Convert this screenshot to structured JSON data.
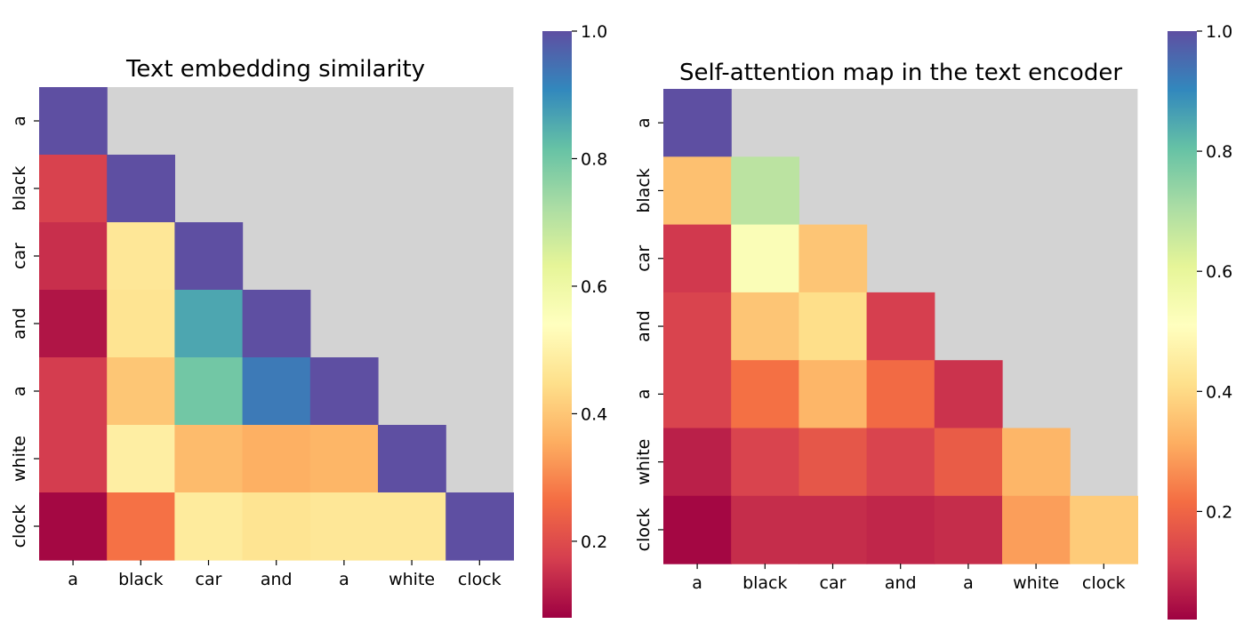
{
  "chart_data": [
    {
      "type": "heatmap",
      "title": "Text embedding similarity",
      "xlabel": "",
      "ylabel": "",
      "x_tick_labels": [
        "a",
        "black",
        "car",
        "and",
        "a",
        "white",
        "clock"
      ],
      "y_tick_labels": [
        "a",
        "black",
        "car",
        "and",
        "a",
        "white",
        "clock"
      ],
      "masked": "upper-triangle (shown in light gray)",
      "values": [
        [
          1.0
        ],
        [
          0.18,
          1.0
        ],
        [
          0.15,
          0.47,
          1.0
        ],
        [
          0.11,
          0.46,
          0.86,
          1.0
        ],
        [
          0.17,
          0.4,
          0.8,
          0.93,
          1.0
        ],
        [
          0.17,
          0.49,
          0.38,
          0.36,
          0.37,
          1.0
        ],
        [
          0.09,
          0.27,
          0.48,
          0.46,
          0.47,
          0.47,
          1.0
        ]
      ],
      "colorbar": {
        "cmap": "Spectral",
        "vmin": 0.08,
        "vmax": 1.0,
        "ticks": [
          "0.2",
          "0.4",
          "0.6",
          "0.8",
          "1.0"
        ]
      }
    },
    {
      "type": "heatmap",
      "title": "Self-attention map in the text encoder",
      "xlabel": "",
      "ylabel": "",
      "x_tick_labels": [
        "a",
        "black",
        "car",
        "and",
        "a",
        "white",
        "clock"
      ],
      "y_tick_labels": [
        "a",
        "black",
        "car",
        "and",
        "a",
        "white",
        "clock"
      ],
      "masked": "upper-triangle (shown in light gray)",
      "values": [
        [
          1.0
        ],
        [
          0.35,
          0.68
        ],
        [
          0.11,
          0.53,
          0.36
        ],
        [
          0.13,
          0.36,
          0.41,
          0.12
        ],
        [
          0.13,
          0.22,
          0.33,
          0.21,
          0.1
        ],
        [
          0.07,
          0.13,
          0.17,
          0.13,
          0.18,
          0.33
        ],
        [
          0.03,
          0.09,
          0.09,
          0.08,
          0.09,
          0.29,
          0.37
        ]
      ],
      "colorbar": {
        "cmap": "Spectral",
        "vmin": 0.02,
        "vmax": 1.0,
        "ticks": [
          "0.2",
          "0.4",
          "0.6",
          "0.8",
          "1.0"
        ]
      }
    }
  ]
}
